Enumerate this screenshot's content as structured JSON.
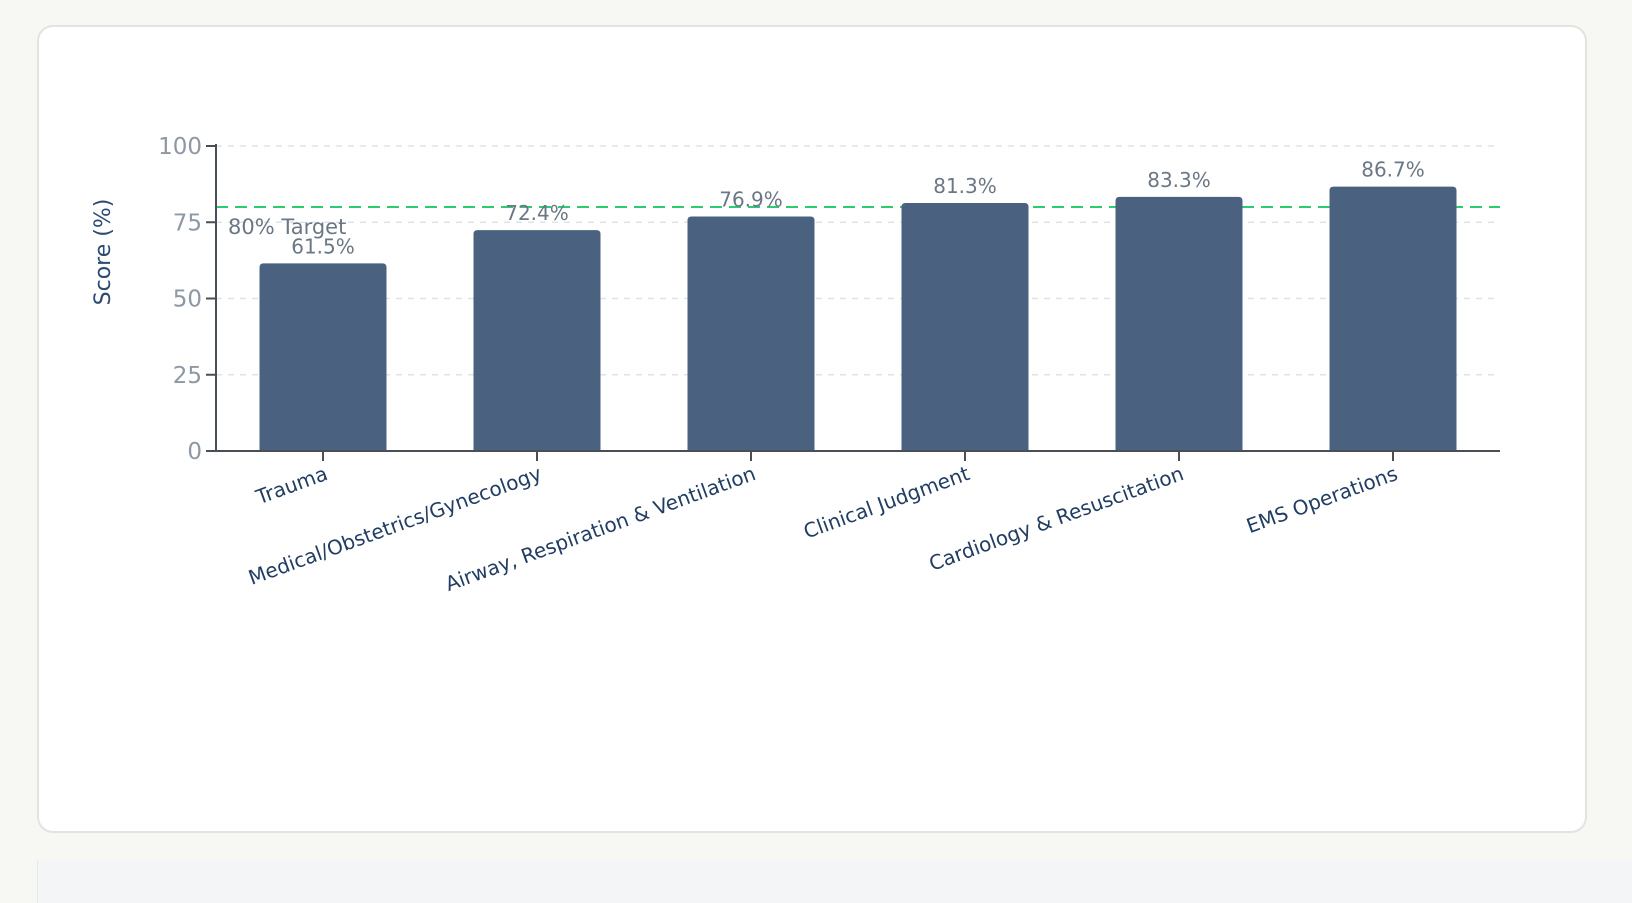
{
  "chart_data": {
    "type": "bar",
    "categories": [
      "Trauma",
      "Medical/Obstetrics/Gynecology",
      "Airway, Respiration & Ventilation",
      "Clinical Judgment",
      "Cardiology & Resuscitation",
      "EMS Operations"
    ],
    "values": [
      61.5,
      72.4,
      76.9,
      81.3,
      83.3,
      86.7
    ],
    "data_labels": [
      "61.5%",
      "72.4%",
      "76.9%",
      "81.3%",
      "83.3%",
      "86.7%"
    ],
    "ylabel": "Score (%)",
    "ylim": [
      0,
      100
    ],
    "yticks": [
      "0",
      "25",
      "50",
      "75",
      "100"
    ],
    "grid": true,
    "target": {
      "value": 80,
      "label": "80% Target",
      "color": "#2ecc71"
    },
    "colors": {
      "bar": "#4a627f",
      "axis": "#4a4f55",
      "grid": "#dfe3e7"
    }
  }
}
